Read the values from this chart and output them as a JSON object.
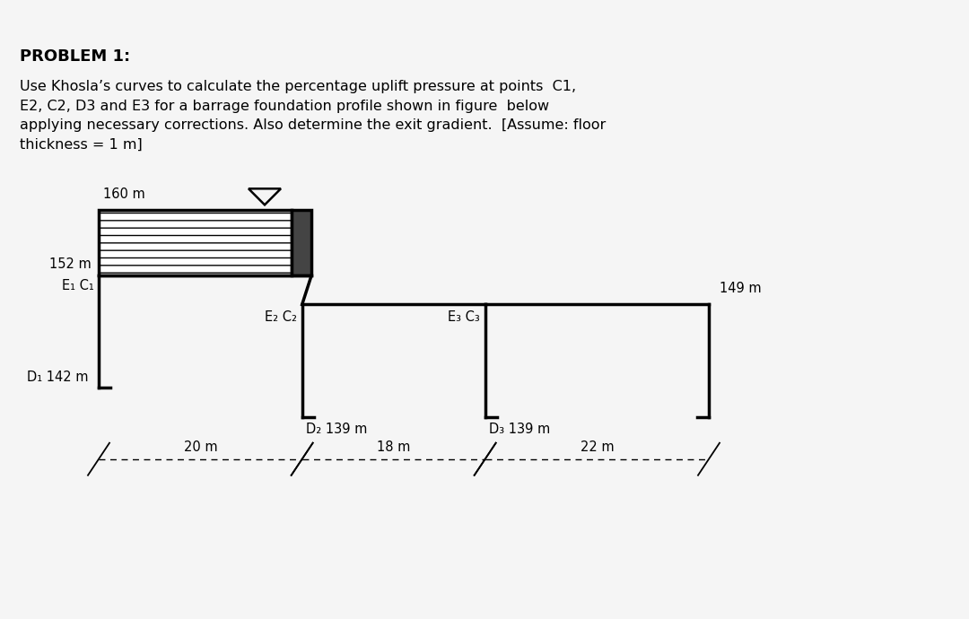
{
  "title": "PROBLEM 1:",
  "problem_text": "Use Khosla’s curves to calculate the percentage uplift pressure at points  C1,\nE2, C2, D3 and E3 for a barrage foundation profile shown in figure  below\napplying necessary corrections. Also determine the exit gradient.  [Assume: floor\nthickness = 1 m]",
  "header_color": "#b22222",
  "body_background": "#f5f5f5",
  "labels": {
    "elev_160": "160 m",
    "elev_152": "152 m",
    "E1C1": "E₁ C₁",
    "elev_142": "D₁ 142 m",
    "elev_149": "149 m",
    "E2C2": "E₂ C₂",
    "D2": "D₂ 139 m",
    "E3C3": "E₃ C₃",
    "D3": "D₃ 139 m",
    "dim1": "20 m",
    "dim2": "18 m",
    "dim3": "22 m"
  }
}
